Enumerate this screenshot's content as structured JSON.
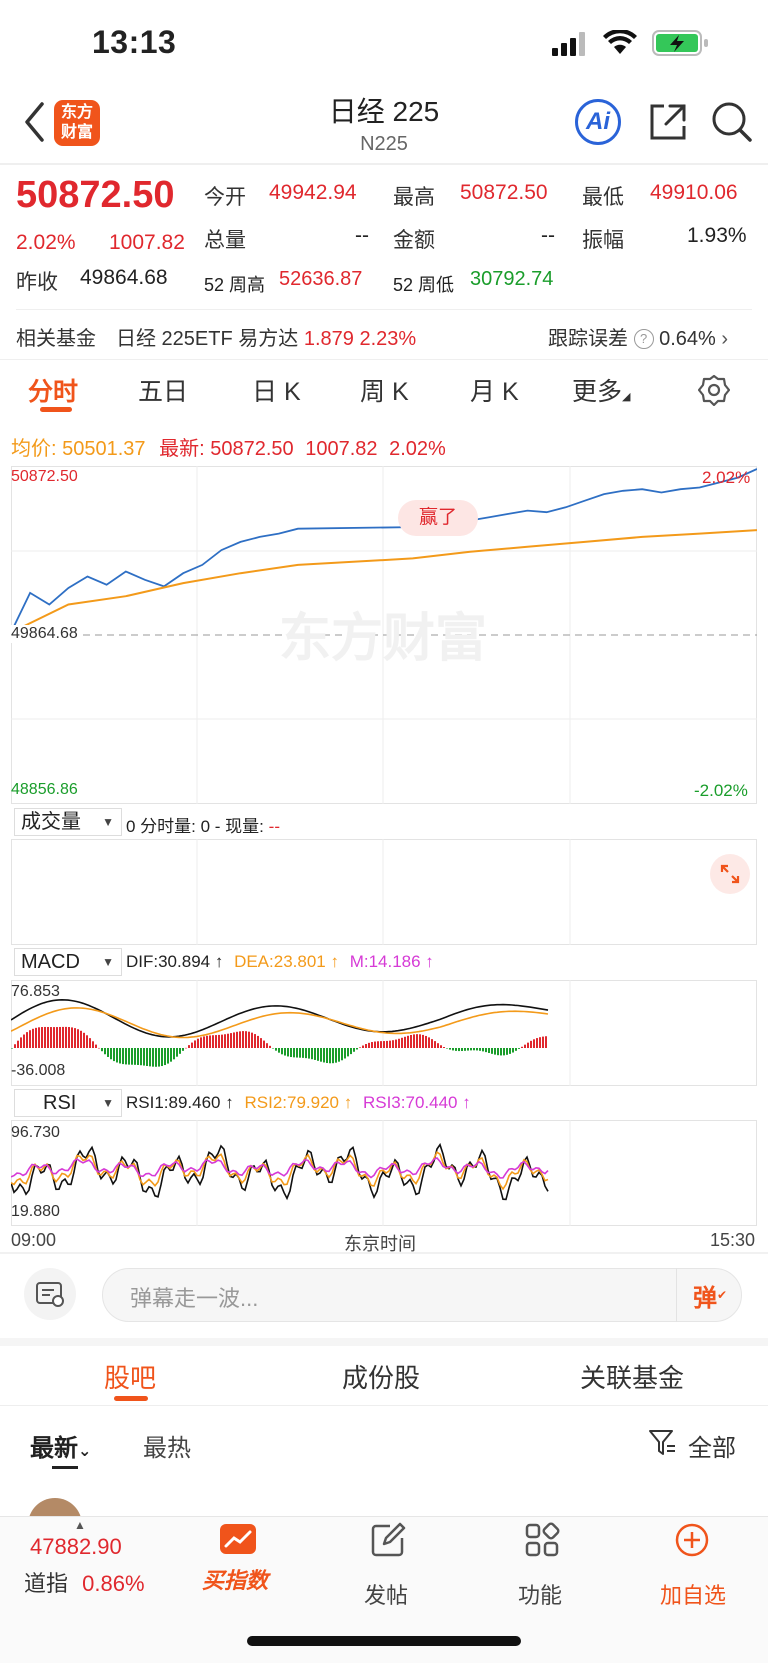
{
  "status_bar": {
    "time": "13:13"
  },
  "nav": {
    "logo_text": "东方财富",
    "title": "日经 225",
    "subtitle": "N225",
    "ai_label": "Ai"
  },
  "quote": {
    "price": "50872.50",
    "change_pct": "2.02%",
    "change": "1007.82",
    "prev_close_label": "昨收",
    "prev_close": "49864.68",
    "open_label": "今开",
    "open": "49942.94",
    "high_label": "最高",
    "high": "50872.50",
    "low_label": "最低",
    "low": "49910.06",
    "volume_label": "总量",
    "volume": "--",
    "amount_label": "金额",
    "amount": "--",
    "amplitude_label": "振幅",
    "amplitude": "1.93%",
    "w52_high_label": "52 周高",
    "w52_high": "52636.87",
    "w52_low_label": "52 周低",
    "w52_low": "30792.74"
  },
  "fund": {
    "label": "相关基金",
    "name": "日经 225ETF 易方达",
    "price": "1.879",
    "pct": "2.23%",
    "tracking_label": "跟踪误差",
    "tracking_value": "0.64%"
  },
  "kline_tabs": [
    "分时",
    "五日",
    "日 K",
    "周 K",
    "月 K",
    "更多"
  ],
  "intraday": {
    "avg_label": "均价:",
    "avg_value": "50501.37",
    "latest_label": "最新:",
    "latest_value": "50872.50",
    "latest_change": "1007.82",
    "latest_pct": "2.02%",
    "y_top": "50872.50",
    "y_mid": "49864.68",
    "y_bottom": "48856.86",
    "pct_top": "2.02%",
    "pct_bottom": "-2.02%",
    "watermark": "东方财富",
    "bubble": "赢了",
    "colors": {
      "price_line": "#2e6fc4",
      "avg_line": "#f39a1a"
    }
  },
  "volume": {
    "selector": "成交量",
    "info_a": "0 分时量: 0 - 现量:",
    "info_b": "--"
  },
  "macd": {
    "selector": "MACD",
    "dif": "DIF:30.894 ↑",
    "dea": "DEA:23.801 ↑",
    "m": "M:14.186 ↑",
    "y_top": "76.853",
    "y_bottom": "-36.008"
  },
  "rsi": {
    "selector": "RSI",
    "rsi1": "RSI1:89.460 ↑",
    "rsi2": "RSI2:79.920 ↑",
    "rsi3": "RSI3:70.440 ↑",
    "y_top": "96.730",
    "y_bottom": "19.880"
  },
  "time_axis": {
    "start": "09:00",
    "mid": "东京时间",
    "end": "15:30"
  },
  "danmu": {
    "placeholder": "弹幕走一波...",
    "button": "弹"
  },
  "guba_tabs": [
    "股吧",
    "成份股",
    "关联基金"
  ],
  "sort": {
    "latest": "最新",
    "hot": "最热",
    "filter": "全部"
  },
  "bottom_bar": {
    "index_value": "47882.90",
    "index_name": "道指",
    "index_pct": "0.86%",
    "items": [
      "买指数",
      "发帖",
      "功能",
      "加自选"
    ]
  },
  "chart_data": {
    "type": "line",
    "title": "",
    "x_range": [
      "09:00",
      "15:30"
    ],
    "ylim": [
      48856.86,
      50872.5
    ],
    "reference": 49864.68,
    "series": [
      {
        "name": "",
        "role": "price",
        "x": [
          "09:00",
          "09:10",
          "09:20",
          "09:30",
          "09:40",
          "09:50",
          "10:00",
          "10:10",
          "10:20",
          "10:30",
          "10:40",
          "10:50",
          "11:00",
          "11:10",
          "11:20",
          "11:30",
          "12:30",
          "12:40",
          "12:50",
          "13:00",
          "13:10",
          "13:20",
          "13:30",
          "13:40",
          "13:50",
          "14:00",
          "14:10",
          "14:20",
          "14:30",
          "14:40",
          "14:50",
          "15:00",
          "15:10",
          "15:20",
          "15:30"
        ],
        "y": [
          49880,
          50120,
          50050,
          50150,
          50220,
          50170,
          50250,
          50200,
          50160,
          50240,
          50290,
          50380,
          50430,
          50460,
          50480,
          50510,
          50520,
          50540,
          50560,
          50560,
          50580,
          50600,
          50620,
          50610,
          50640,
          50680,
          50720,
          50740,
          50750,
          50730,
          50750,
          50760,
          50790,
          50820,
          50872.5
        ]
      },
      {
        "name": "均价",
        "role": "avg",
        "x": [
          "09:00",
          "09:30",
          "10:00",
          "10:30",
          "11:00",
          "11:30",
          "12:30",
          "13:00",
          "13:30",
          "14:00",
          "14:30",
          "15:00",
          "15:30"
        ],
        "y": [
          49880,
          50050,
          50100,
          50180,
          50240,
          50290,
          50330,
          50370,
          50400,
          50430,
          50460,
          50480,
          50501.37
        ]
      }
    ]
  }
}
